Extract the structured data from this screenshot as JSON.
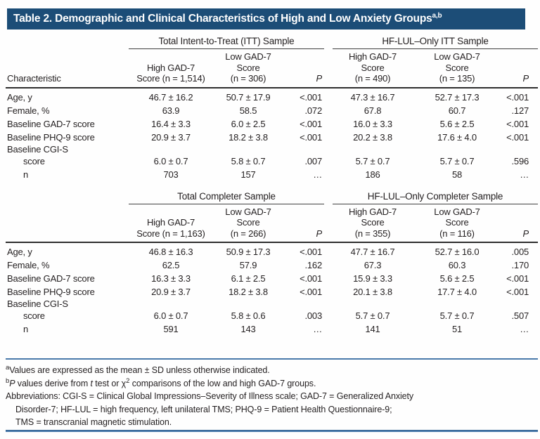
{
  "title": {
    "text": "Table 2. Demographic and Clinical Characteristics of High and Low Anxiety Groups",
    "sup": "a,b"
  },
  "colors": {
    "title_bar": "#1c4d77",
    "rule_blue": "#4a7aab",
    "text": "#231f20"
  },
  "table": {
    "sections": [
      {
        "group_headers": [
          "Total Intent-to-Treat (ITT) Sample",
          "HF-LUL–Only ITT Sample"
        ],
        "column_headers": [
          {
            "lines": [
              "Characteristic"
            ],
            "align": "left"
          },
          {
            "lines": [
              "High GAD-7",
              "Score (n = 1,514)"
            ]
          },
          {
            "lines": [
              "Low GAD-7",
              "Score",
              "(n = 306)"
            ]
          },
          {
            "lines": [
              "P"
            ],
            "italic": true
          },
          {
            "lines": [
              "High GAD-7",
              "Score",
              "(n = 490)"
            ]
          },
          {
            "lines": [
              "Low GAD-7",
              "Score",
              "(n = 135)"
            ]
          },
          {
            "lines": [
              "P"
            ],
            "italic": true
          }
        ],
        "rows": [
          {
            "label": "Age, y",
            "values": [
              "46.7 ± 16.2",
              "50.7 ± 17.9",
              "<.001",
              "47.3 ± 16.7",
              "52.7 ± 17.3",
              "<.001"
            ]
          },
          {
            "label": "Female, %",
            "values": [
              "63.9",
              "58.5",
              ".072",
              "67.8",
              "60.7",
              ".127"
            ]
          },
          {
            "label": "Baseline GAD-7 score",
            "values": [
              "16.4 ± 3.3",
              "6.0 ± 2.5",
              "<.001",
              "16.0 ± 3.3",
              "5.6 ± 2.5",
              "<.001"
            ]
          },
          {
            "label": "Baseline PHQ-9 score",
            "values": [
              "20.9 ± 3.7",
              "18.2 ± 3.8",
              "<.001",
              "20.2 ± 3.8",
              "17.6 ± 4.0",
              "<.001"
            ]
          },
          {
            "label": "Baseline CGI-S",
            "tight": true,
            "values": [
              "",
              "",
              "",
              "",
              "",
              ""
            ]
          },
          {
            "label": "score",
            "indent": true,
            "values": [
              "6.0 ± 0.7",
              "5.8 ± 0.7",
              ".007",
              "5.7 ± 0.7",
              "5.7 ± 0.7",
              ".596"
            ]
          },
          {
            "label": "n",
            "indent": true,
            "values": [
              "703",
              "157",
              "…",
              "186",
              "58",
              "…"
            ]
          }
        ]
      },
      {
        "group_headers": [
          "Total Completer Sample",
          "HF-LUL–Only Completer Sample"
        ],
        "column_headers": [
          {
            "lines": [],
            "align": "left"
          },
          {
            "lines": [
              "High GAD-7",
              "Score (n = 1,163)"
            ]
          },
          {
            "lines": [
              "Low GAD-7",
              "Score",
              "(n = 266)"
            ]
          },
          {
            "lines": [
              "P"
            ],
            "italic": true
          },
          {
            "lines": [
              "High GAD-7",
              "Score",
              "(n = 355)"
            ]
          },
          {
            "lines": [
              "Low GAD-7",
              "Score",
              "(n = 116)"
            ]
          },
          {
            "lines": [
              "P"
            ],
            "italic": true
          }
        ],
        "rows": [
          {
            "label": "Age, y",
            "values": [
              "46.8 ± 16.3",
              "50.9 ± 17.3",
              "<.001",
              "47.7 ± 16.7",
              "52.7 ± 16.0",
              ".005"
            ]
          },
          {
            "label": "Female, %",
            "values": [
              "62.5",
              "57.9",
              ".162",
              "67.3",
              "60.3",
              ".170"
            ]
          },
          {
            "label": "Baseline GAD-7 score",
            "values": [
              "16.3 ± 3.3",
              "6.1 ± 2.5",
              "<.001",
              "15.9 ± 3.3",
              "5.6 ± 2.5",
              "<.001"
            ]
          },
          {
            "label": "Baseline PHQ-9 score",
            "values": [
              "20.9 ± 3.7",
              "18.2 ± 3.8",
              "<.001",
              "20.1 ± 3.8",
              "17.7 ± 4.0",
              "<.001"
            ]
          },
          {
            "label": "Baseline CGI-S",
            "tight": true,
            "values": [
              "",
              "",
              "",
              "",
              "",
              ""
            ]
          },
          {
            "label": "score",
            "indent": true,
            "values": [
              "6.0 ± 0.7",
              "5.8 ± 0.6",
              ".003",
              "5.7 ± 0.7",
              "5.7 ± 0.7",
              ".507"
            ]
          },
          {
            "label": "n",
            "indent": true,
            "values": [
              "591",
              "143",
              "…",
              "141",
              "51",
              "…"
            ]
          }
        ]
      }
    ]
  },
  "footnotes": {
    "a": [
      {
        "text": "a",
        "sup": true
      },
      {
        "text": "Values are expressed as the mean ± SD unless otherwise indicated."
      }
    ],
    "b": [
      {
        "text": "b",
        "sup": true
      },
      {
        "text": "P",
        "italic": true
      },
      {
        "text": " values derive from "
      },
      {
        "text": "t",
        "italic": true
      },
      {
        "text": " test or χ"
      },
      {
        "text": "2",
        "sup": true
      },
      {
        "text": " comparisons of the low and high GAD-7 groups."
      }
    ],
    "abbreviations": [
      "Abbreviations: CGI-S = Clinical Global Impressions–Severity of Illness scale; GAD-7 = Generalized Anxiety",
      "Disorder-7; HF-LUL = high frequency, left unilateral TMS; PHQ-9 = Patient Health Questionnaire-9;",
      "TMS = transcranial magnetic stimulation."
    ]
  }
}
